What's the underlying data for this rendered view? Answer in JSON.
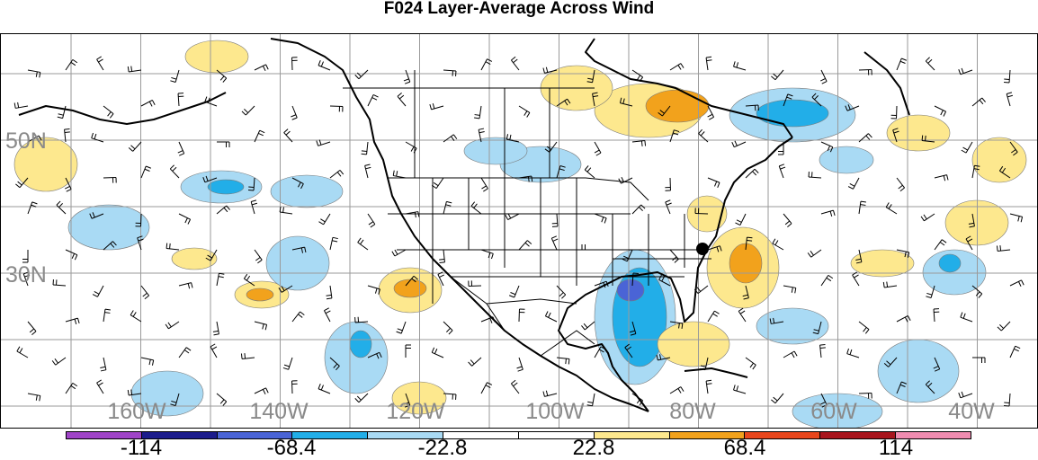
{
  "title": "F024 Layer-Average Across Wind",
  "lat_labels": [
    "50N",
    "30N"
  ],
  "lon_labels": [
    "160W",
    "140W",
    "120W",
    "100W",
    "80W",
    "60W",
    "40W"
  ],
  "colorbar": {
    "colors": [
      "#a044c8",
      "#1c1c8c",
      "#4a64d6",
      "#22aee8",
      "#a9daf4",
      "#ffffff",
      "#ffffff",
      "#fde88e",
      "#f2a21c",
      "#e8461c",
      "#a8141c",
      "#f08cb0"
    ],
    "labels": [
      "-114",
      "-68.4",
      "-22.8",
      "22.8",
      "68.4",
      "114"
    ]
  },
  "contour_colors": {
    "light_blue": "#a9daf4",
    "mid_blue": "#22aee8",
    "dark_blue": "#4a64d6",
    "light_yellow": "#fde88e",
    "orange": "#f2a21c"
  }
}
